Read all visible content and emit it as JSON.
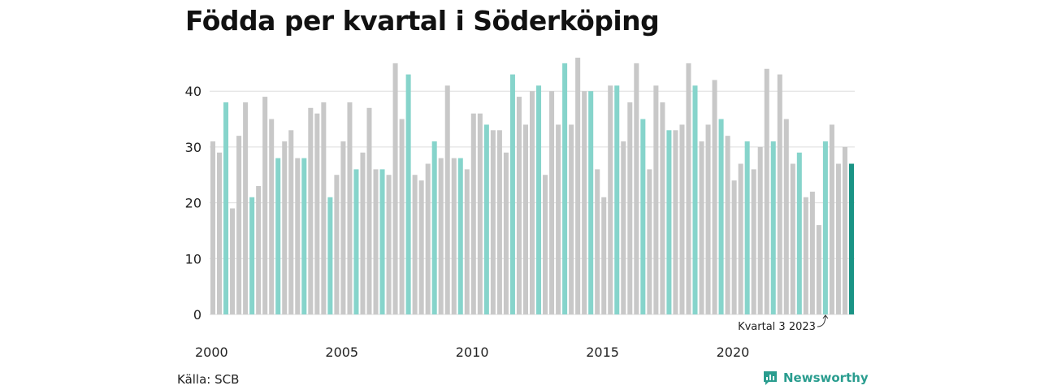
{
  "title": "Födda per kvartal i Söderköping",
  "source": "Källa: SCB",
  "brand": "Newsworthy",
  "colors": {
    "grey": "#c8c8c8",
    "q3": "#86d4cb",
    "highlight": "#1a9485",
    "grid": "#dddddd",
    "brand": "#2a9d8f"
  },
  "chart_data": {
    "type": "bar",
    "title": "Födda per kvartal i Söderköping",
    "xlabel": "",
    "ylabel": "",
    "ylim": [
      0,
      46
    ],
    "y_ticks": [
      0,
      10,
      20,
      30,
      40
    ],
    "x_tick_labels": [
      "2000",
      "2005",
      "2010",
      "2015",
      "2020"
    ],
    "grid": true,
    "annotation": "Kvartal 3 2023",
    "start_year": 2000,
    "values": [
      31,
      29,
      38,
      19,
      32,
      38,
      21,
      23,
      39,
      35,
      28,
      31,
      33,
      28,
      28,
      37,
      36,
      38,
      21,
      25,
      31,
      38,
      26,
      29,
      37,
      26,
      26,
      25,
      45,
      35,
      43,
      25,
      24,
      27,
      31,
      28,
      41,
      28,
      28,
      26,
      36,
      36,
      34,
      33,
      33,
      29,
      43,
      39,
      34,
      40,
      41,
      25,
      40,
      34,
      45,
      34,
      46,
      40,
      40,
      26,
      21,
      41,
      41,
      31,
      38,
      45,
      35,
      26,
      41,
      38,
      33,
      33,
      34,
      45,
      41,
      31,
      34,
      42,
      35,
      32,
      24,
      27,
      31,
      26,
      30,
      44,
      31,
      43,
      35,
      27,
      29,
      21,
      22,
      16,
      31,
      34,
      27,
      30,
      27
    ]
  }
}
